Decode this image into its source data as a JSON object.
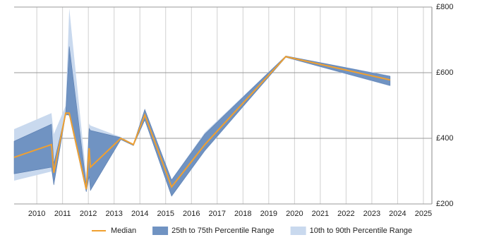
{
  "chart_data": {
    "type": "band-line",
    "x": [
      2009.12,
      2010.57,
      2010.66,
      2011.12,
      2011.26,
      2011.92,
      2012.03,
      2012.08,
      2013.26,
      2013.75,
      2014.19,
      2015.23,
      2016.52,
      2019.66,
      2023.71
    ],
    "series": [
      {
        "name": "Median",
        "color": "#f0a030",
        "values": [
          342,
          381,
          295,
          477,
          477,
          245,
          370,
          312,
          400,
          381,
          471,
          252,
          381,
          649,
          578
        ]
      },
      {
        "name": "25th to 75th Percentile Range",
        "color": "#7093c2",
        "low": [
          292,
          312,
          258,
          473,
          470,
          237,
          284,
          241,
          396,
          378,
          456,
          224,
          363,
          647,
          561
        ],
        "high": [
          391,
          443,
          323,
          477,
          680,
          258,
          430,
          424,
          402,
          382,
          488,
          273,
          413,
          651,
          589
        ]
      },
      {
        "name": "10th to 90th Percentile Range",
        "color": "#c9d9ee",
        "low": [
          271,
          299,
          258,
          467,
          477,
          237,
          280,
          241,
          396,
          377,
          454,
          222,
          360,
          646,
          559
        ],
        "high": [
          428,
          477,
          413,
          499,
          796,
          284,
          445,
          439,
          404,
          383,
          490,
          275,
          418,
          652,
          591
        ]
      }
    ],
    "xlim": [
      2009.12,
      2025.33
    ],
    "xticks": [
      2010,
      2011,
      2012,
      2013,
      2014,
      2015,
      2016,
      2017,
      2018,
      2019,
      2020,
      2021,
      2022,
      2023,
      2024,
      2025
    ],
    "ylim": [
      200,
      800
    ],
    "yticks": [
      {
        "value": 200,
        "label": "£200"
      },
      {
        "value": 400,
        "label": "£400"
      },
      {
        "value": 600,
        "label": "£600"
      },
      {
        "value": 800,
        "label": "£800"
      }
    ],
    "grid": true,
    "legend": "bottom"
  }
}
